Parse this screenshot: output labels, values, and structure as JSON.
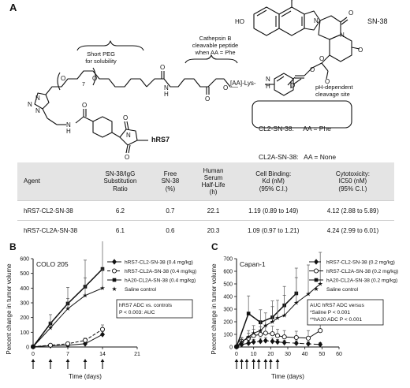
{
  "panel_a": {
    "letter": "A",
    "sn38_label": "SN-38",
    "ho_label": "HO",
    "peg_label_1": "Short PEG",
    "peg_label_2": "for solubility",
    "cath_label_1": "Cathepsin B",
    "cath_label_2": "cleavable peptide",
    "cath_label_3": "when AA = Phe",
    "aa_label": "[AA]-Lys-",
    "ph_label_1": "pH-dependent",
    "ph_label_2": "cleavage site",
    "hrs7_label": "hRS7",
    "peg_sub": "7",
    "legend_line1": "CL2-SN-38:     AA = Phe",
    "legend_line2": "CL2A-SN-38:   AA = None"
  },
  "table": {
    "headers": {
      "agent": "Agent",
      "sub_ratio": [
        "SN-38/IgG",
        "Substitution",
        "Ratio"
      ],
      "free": [
        "Free",
        "SN-38",
        "(%)"
      ],
      "halflife": [
        "Human",
        "Serum",
        "Half-Life",
        "(h)"
      ],
      "binding": [
        "Cell Binding:",
        "Kd (nM)",
        "(95% C.I.)"
      ],
      "cyto": [
        "Cytotoxicity:",
        "IC50 (nM)",
        "(95% C.I.)"
      ]
    },
    "rows": [
      {
        "agent": "hRS7-CL2-SN-38",
        "sub_ratio": "6.2",
        "free": "0.7",
        "halflife": "22.1",
        "binding": "1.19 (0.89 to 149)",
        "cyto": "4.12 (2.88 to 5.89)"
      },
      {
        "agent": "hRS7-CL2A-SN-38",
        "sub_ratio": "6.1",
        "free": "0.6",
        "halflife": "20.3",
        "binding": "1.09 (0.97 to 1.21)",
        "cyto": "4.24 (2.99 to 6.01)"
      }
    ]
  },
  "chart_data": [
    {
      "type": "line",
      "panel": "B",
      "subtitle": "COLO 205",
      "xlabel": "Time (days)",
      "ylabel": "Percent change in tumor volume",
      "xlim": [
        0,
        21
      ],
      "ylim": [
        0,
        600
      ],
      "xticks": [
        0,
        7,
        14,
        21
      ],
      "yticks": [
        0,
        100,
        200,
        300,
        400,
        500,
        600
      ],
      "arrows_x": [
        0,
        3.5,
        7,
        10.5,
        14
      ],
      "annotation": [
        "hRS7 ADC vs. controls",
        "P < 0.003: AUC"
      ],
      "series": [
        {
          "name": "hRS7-CL2-SN-38 (0.4 mg/kg)",
          "marker": "diamond-filled",
          "dash": "none",
          "x": [
            0,
            3.5,
            7,
            10.5,
            14
          ],
          "y": [
            2,
            9,
            12,
            22,
            85
          ],
          "err": [
            2,
            4,
            5,
            8,
            20
          ]
        },
        {
          "name": "hRS7-CL2A-SN-38 (0.4 mg/kg)",
          "marker": "circle-open",
          "dash": "4,2",
          "x": [
            0,
            3.5,
            7,
            10.5,
            14
          ],
          "y": [
            2,
            12,
            22,
            45,
            120
          ],
          "err": [
            2,
            5,
            8,
            15,
            30
          ]
        },
        {
          "name": "hA20-CL2A-SN-38 (0.4 mg/kg)",
          "marker": "square-filled",
          "dash": "none",
          "x": [
            0,
            3.5,
            7,
            10.5,
            14
          ],
          "y": [
            2,
            160,
            295,
            410,
            530
          ],
          "err": [
            2,
            60,
            110,
            180,
            190
          ]
        },
        {
          "name": "Saline control",
          "marker": "star",
          "dash": "none",
          "x": [
            0,
            3.5,
            7,
            10.5,
            14
          ],
          "y": [
            2,
            130,
            260,
            350,
            400
          ],
          "err": [
            2,
            40,
            70,
            120,
            130
          ]
        }
      ]
    },
    {
      "type": "line",
      "panel": "C",
      "subtitle": "Capan-1",
      "xlabel": "Time (days)",
      "ylabel": "Percent change in tumor volume",
      "xlim": [
        0,
        60
      ],
      "ylim": [
        0,
        700
      ],
      "xticks": [
        0,
        10,
        20,
        30,
        40,
        50,
        60
      ],
      "yticks": [
        0,
        100,
        200,
        300,
        400,
        500,
        600,
        700
      ],
      "arrows_x": [
        0,
        3,
        6,
        10,
        13,
        17,
        20,
        24
      ],
      "annotation": [
        "AUC hRS7 ADC versus",
        "*Saline P < 0.001",
        "**hA20 ADC P < 0.001"
      ],
      "series": [
        {
          "name": "hRS7-CL2-SN-38 (0.2 mg/kg)",
          "marker": "diamond-filled",
          "dash": "6,3",
          "x": [
            0,
            3,
            7,
            10,
            14,
            17,
            21,
            24,
            28,
            35,
            42,
            49
          ],
          "y": [
            2,
            20,
            30,
            40,
            45,
            50,
            45,
            40,
            35,
            30,
            25,
            20
          ],
          "err": [
            2,
            15,
            20,
            20,
            25,
            25,
            25,
            20,
            20,
            20,
            15,
            15
          ]
        },
        {
          "name": "hRS7-CL2A-SN-38 (0.2 mg/kg)",
          "marker": "circle-open",
          "dash": "none",
          "x": [
            0,
            3,
            7,
            10,
            14,
            17,
            21,
            24,
            28,
            35,
            42,
            49
          ],
          "y": [
            2,
            45,
            70,
            90,
            100,
            110,
            105,
            90,
            80,
            75,
            70,
            130
          ],
          "err": [
            2,
            30,
            40,
            50,
            60,
            60,
            60,
            50,
            50,
            50,
            60,
            120
          ]
        },
        {
          "name": "hA20-CL2A-SN-38 (0.2 mg/kg)",
          "marker": "square-filled",
          "dash": "none",
          "x": [
            0,
            7,
            14,
            21,
            28,
            35
          ],
          "y": [
            2,
            265,
            195,
            235,
            330,
            425
          ],
          "err": [
            2,
            140,
            100,
            130,
            150,
            200
          ]
        },
        {
          "name": "Saline control",
          "marker": "star",
          "dash": "none",
          "x": [
            0,
            3,
            7,
            10,
            14,
            17,
            21,
            24,
            28,
            35,
            42,
            49
          ],
          "y": [
            2,
            40,
            80,
            110,
            130,
            170,
            200,
            230,
            250,
            350,
            420,
            500
          ],
          "err": [
            2,
            30,
            50,
            60,
            80,
            100,
            120,
            140,
            160,
            200,
            230,
            250
          ]
        }
      ]
    }
  ]
}
